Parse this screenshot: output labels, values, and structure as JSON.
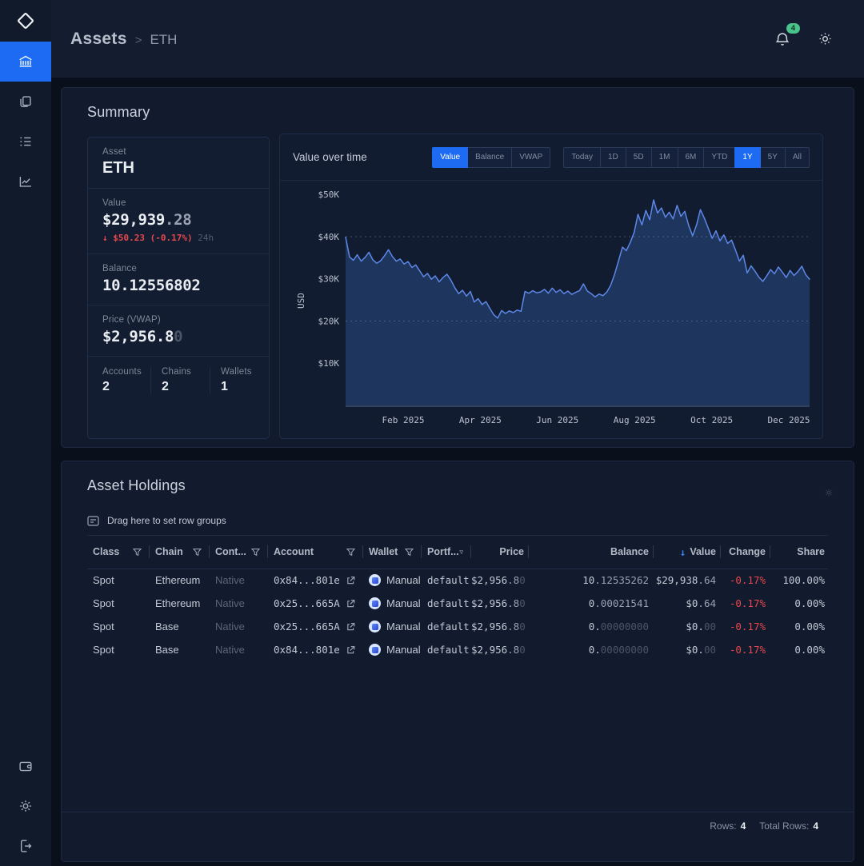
{
  "app": {
    "breadcrumb": {
      "section": "Assets",
      "separator": ">",
      "page": "ETH"
    },
    "notifications_count": "4"
  },
  "sidebar": {
    "items": [
      {
        "name": "balances",
        "icon": "bank-icon",
        "active": true
      },
      {
        "name": "collections",
        "icon": "copy-icon",
        "active": false
      },
      {
        "name": "history",
        "icon": "list-icon",
        "active": false
      },
      {
        "name": "statistics",
        "icon": "line-chart-icon",
        "active": false
      }
    ],
    "bottom_items": [
      {
        "name": "wallet",
        "icon": "wallet-icon"
      },
      {
        "name": "settings",
        "icon": "gear-icon"
      },
      {
        "name": "logout",
        "icon": "logout-icon"
      }
    ]
  },
  "summary": {
    "title": "Summary",
    "asset": {
      "label": "Asset",
      "value": "ETH"
    },
    "value": {
      "label": "Value",
      "main": "$29,939",
      "dec": ".28",
      "delta": "↓ $50.23 (-0.17%)",
      "period": "24h"
    },
    "balance": {
      "label": "Balance",
      "value": "10.12556802"
    },
    "price": {
      "label": "Price (VWAP)",
      "main": "$2,956.8",
      "faint": "0"
    },
    "stats": [
      {
        "label": "Accounts",
        "value": "2"
      },
      {
        "label": "Chains",
        "value": "2"
      },
      {
        "label": "Wallets",
        "value": "1"
      }
    ]
  },
  "chart": {
    "title": "Value over time",
    "series_tabs": [
      {
        "label": "Value",
        "active": true
      },
      {
        "label": "Balance",
        "active": false
      },
      {
        "label": "VWAP",
        "active": false
      }
    ],
    "range_tabs": [
      {
        "label": "Today",
        "active": false
      },
      {
        "label": "1D",
        "active": false
      },
      {
        "label": "5D",
        "active": false
      },
      {
        "label": "1M",
        "active": false
      },
      {
        "label": "6M",
        "active": false
      },
      {
        "label": "YTD",
        "active": false
      },
      {
        "label": "1Y",
        "active": true
      },
      {
        "label": "5Y",
        "active": false
      },
      {
        "label": "All",
        "active": false
      }
    ]
  },
  "chart_data": {
    "type": "area",
    "title": "Value over time",
    "ylabel": "USD",
    "x_tick_labels": [
      "Feb 2025",
      "Apr 2025",
      "Jun 2025",
      "Aug 2025",
      "Oct 2025",
      "Dec 2025"
    ],
    "y_tick_labels": [
      "$10K",
      "$20K",
      "$30K",
      "$40K",
      "$50K"
    ],
    "y_ticks_k": [
      10,
      20,
      30,
      40,
      50
    ],
    "gridlines_k": [
      20,
      40
    ],
    "ylim_k": [
      0,
      52.5
    ],
    "grid": "dashed",
    "legend": "none",
    "line_color": "#5d87e8",
    "fill_color": "#1e355e",
    "values_usd_k": [
      39.9,
      35.2,
      34.4,
      35.7,
      34.2,
      35.1,
      36.3,
      34.5,
      33.7,
      34.3,
      35.5,
      36.9,
      35.3,
      34.2,
      34.7,
      33.5,
      34.1,
      32.7,
      33.3,
      31.9,
      30.5,
      31.3,
      29.9,
      30.7,
      29.3,
      30.3,
      31.1,
      29.7,
      27.9,
      26.5,
      27.3,
      25.9,
      27.0,
      24.5,
      25.3,
      23.9,
      24.6,
      23.0,
      21.5,
      20.7,
      22.5,
      21.8,
      22.4,
      22.0,
      22.6,
      22.3,
      27.0,
      26.6,
      27.2,
      26.7,
      26.9,
      27.5,
      26.6,
      27.8,
      26.8,
      27.4,
      26.5,
      27.1,
      26.3,
      26.8,
      27.2,
      28.8,
      27.1,
      26.5,
      25.7,
      26.4,
      26.0,
      26.9,
      28.5,
      31.1,
      34.3,
      37.5,
      36.7,
      38.6,
      41.0,
      45.3,
      42.8,
      46.2,
      44.0,
      48.7,
      45.6,
      46.8,
      44.6,
      45.8,
      44.2,
      47.4,
      44.8,
      46.0,
      42.6,
      40.2,
      42.8,
      46.4,
      44.4,
      42.0,
      39.6,
      41.4,
      39.0,
      40.4,
      38.4,
      39.2,
      36.8,
      34.2,
      35.6,
      31.4,
      33.1,
      31.8,
      30.4,
      29.4,
      30.7,
      32.2,
      31.2,
      32.8,
      31.6,
      30.3,
      32.0,
      30.8,
      31.7,
      33.0,
      31.0,
      29.9
    ]
  },
  "holdings": {
    "title": "Asset Holdings",
    "drag_hint": "Drag here to set row groups",
    "columns": [
      {
        "label": "Class",
        "filter": true
      },
      {
        "label": "Chain",
        "filter": true
      },
      {
        "label": "Cont...",
        "filter": true
      },
      {
        "label": "Account",
        "filter": true
      },
      {
        "label": "Wallet",
        "filter": true
      },
      {
        "label": "Portf...",
        "filter": true
      },
      {
        "label": "Price",
        "align": "right"
      },
      {
        "label": "Balance",
        "align": "right"
      },
      {
        "label": "Value",
        "align": "right",
        "sort": "desc"
      },
      {
        "label": "Change",
        "align": "right"
      },
      {
        "label": "Share",
        "align": "right"
      }
    ],
    "rows": [
      {
        "asset_class": "Spot",
        "chain": "Ethereum",
        "contract": "Native",
        "account": "0x84...801e",
        "wallet": "Manual",
        "portfolio": "default",
        "price": {
          "main": "$2,956",
          "dec": ".8",
          "faint": "0"
        },
        "balance": {
          "main": "10",
          "dec": ".12535262"
        },
        "value": {
          "main": "$29,938",
          "dec": ".64"
        },
        "change": "-0.17%",
        "share": "100.00%"
      },
      {
        "asset_class": "Spot",
        "chain": "Ethereum",
        "contract": "Native",
        "account": "0x25...665A",
        "wallet": "Manual",
        "portfolio": "default",
        "price": {
          "main": "$2,956",
          "dec": ".8",
          "faint": "0"
        },
        "balance": {
          "main": "0",
          "dec": ".00021541"
        },
        "value": {
          "main": "$0",
          "dec": ".64"
        },
        "change": "-0.17%",
        "share": "0.00%"
      },
      {
        "asset_class": "Spot",
        "chain": "Base",
        "contract": "Native",
        "account": "0x25...665A",
        "wallet": "Manual",
        "portfolio": "default",
        "price": {
          "main": "$2,956",
          "dec": ".8",
          "faint": "0"
        },
        "balance": {
          "main": "0.",
          "faint": "00000000"
        },
        "value": {
          "main": "$0.",
          "faint": "00"
        },
        "change": "-0.17%",
        "share": "0.00%"
      },
      {
        "asset_class": "Spot",
        "chain": "Base",
        "contract": "Native",
        "account": "0x84...801e",
        "wallet": "Manual",
        "portfolio": "default",
        "price": {
          "main": "$2,956",
          "dec": ".8",
          "faint": "0"
        },
        "balance": {
          "main": "0.",
          "faint": "00000000"
        },
        "value": {
          "main": "$0.",
          "faint": "00"
        },
        "change": "-0.17%",
        "share": "0.00%"
      }
    ],
    "footer": {
      "rows_label": "Rows:",
      "rows_value": "4",
      "total_label": "Total Rows:",
      "total_value": "4"
    }
  }
}
